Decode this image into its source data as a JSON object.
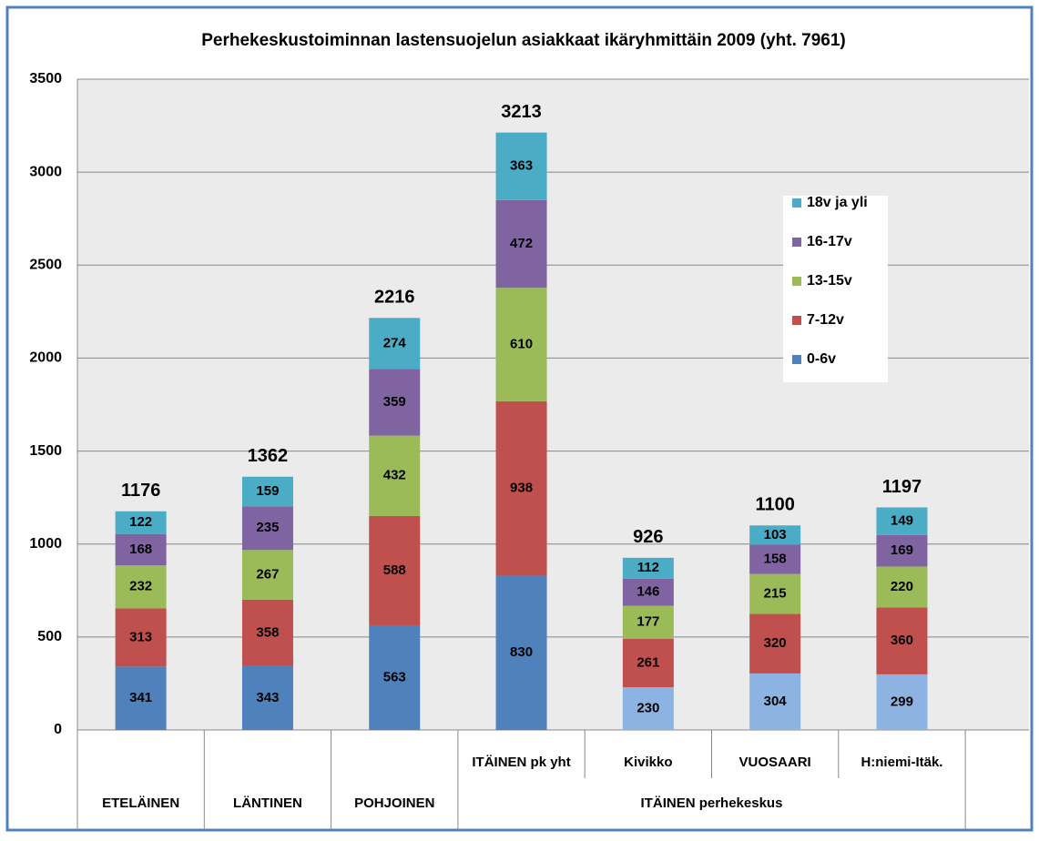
{
  "chart_data": {
    "type": "stacked_bar",
    "title": "Perhekeskustoiminnan lastensuojelun asiakkaat  ikäryhmittäin 2009 (yht. 7961)",
    "categories": [
      "ETELÄINEN",
      "LÄNTINEN",
      "POHJOINEN",
      "ITÄINEN pk yht",
      "Kivikko",
      "VUOSAARI",
      "H:niemi-Itäk."
    ],
    "group_label": "ITÄINEN perhekeskus",
    "series": [
      {
        "name": "0-6v",
        "color": "#4f81bd",
        "colors": [
          "#4f81bd",
          "#4f81bd",
          "#4f81bd",
          "#4f81bd",
          "#8db3e2",
          "#8db3e2",
          "#8db3e2"
        ],
        "values": [
          341,
          343,
          563,
          830,
          230,
          304,
          299
        ]
      },
      {
        "name": "7-12v",
        "color": "#c0504d",
        "values": [
          313,
          358,
          588,
          938,
          261,
          320,
          360
        ]
      },
      {
        "name": "13-15v",
        "color": "#9bbb59",
        "values": [
          232,
          267,
          432,
          610,
          177,
          215,
          220
        ]
      },
      {
        "name": "16-17v",
        "color": "#8064a2",
        "values": [
          168,
          235,
          359,
          472,
          146,
          158,
          169
        ]
      },
      {
        "name": "18v ja yli",
        "color": "#4bacc6",
        "values": [
          122,
          159,
          274,
          363,
          112,
          103,
          149
        ]
      }
    ],
    "totals": [
      1176,
      1362,
      2216,
      3213,
      926,
      1100,
      1197
    ],
    "ylim": [
      0,
      3500
    ],
    "yticks": [
      0,
      500,
      1000,
      1500,
      2000,
      2500,
      3000,
      3500
    ],
    "grid": true,
    "legend": "right"
  }
}
